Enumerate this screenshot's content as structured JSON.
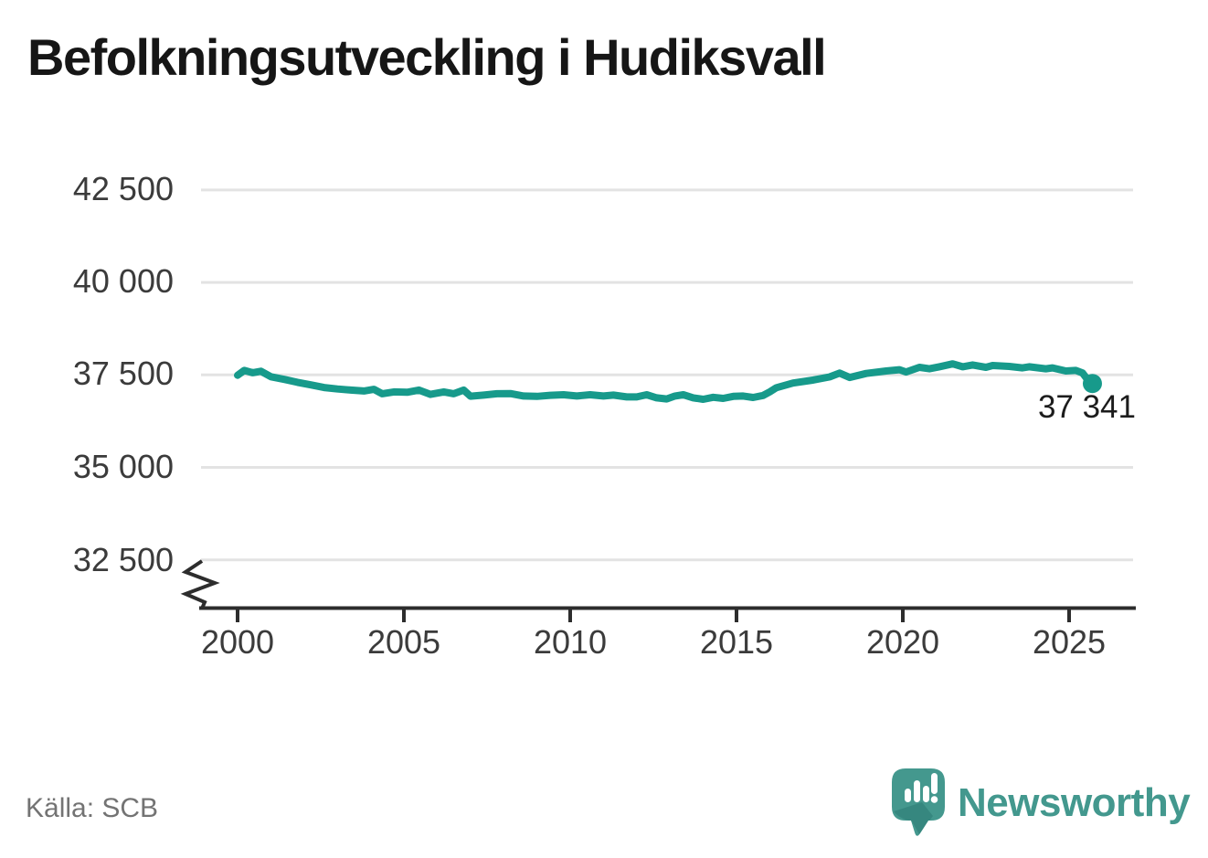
{
  "chart_data": {
    "type": "line",
    "title": "Befolkningsutveckling i Hudiksvall",
    "source": "Källa: SCB",
    "grid": "horizontal",
    "legend": "none",
    "axis_break": true,
    "xlim": [
      1999.9,
      2027.0
    ],
    "ylim_display": [
      32500,
      42500
    ],
    "ytick_labels": [
      "42 500",
      "40 000",
      "37 500",
      "35 000",
      "32 500"
    ],
    "ytick_values": [
      42500,
      40000,
      37500,
      35000,
      32500
    ],
    "xtick_labels": [
      "2000",
      "2005",
      "2010",
      "2015",
      "2020",
      "2025"
    ],
    "xtick_values": [
      2000,
      2005,
      2010,
      2015,
      2020,
      2025
    ],
    "line_color": "#179a8b",
    "grid_color": "#e3e3e3",
    "axis_color": "#2d2d2d",
    "end_label": {
      "text": "37 341",
      "value": 37341,
      "year": 2025.7
    },
    "series": [
      {
        "name": "Befolkning",
        "points": [
          [
            2000.0,
            37490
          ],
          [
            2000.2,
            37620
          ],
          [
            2000.45,
            37560
          ],
          [
            2000.7,
            37600
          ],
          [
            2001.0,
            37450
          ],
          [
            2001.4,
            37380
          ],
          [
            2001.8,
            37300
          ],
          [
            2002.2,
            37230
          ],
          [
            2002.6,
            37160
          ],
          [
            2003.0,
            37120
          ],
          [
            2003.4,
            37090
          ],
          [
            2003.8,
            37065
          ],
          [
            2004.1,
            37110
          ],
          [
            2004.35,
            36990
          ],
          [
            2004.7,
            37040
          ],
          [
            2005.1,
            37030
          ],
          [
            2005.45,
            37090
          ],
          [
            2005.8,
            36975
          ],
          [
            2006.2,
            37040
          ],
          [
            2006.5,
            36990
          ],
          [
            2006.8,
            37090
          ],
          [
            2007.0,
            36925
          ],
          [
            2007.4,
            36955
          ],
          [
            2007.8,
            36990
          ],
          [
            2008.2,
            36995
          ],
          [
            2008.6,
            36930
          ],
          [
            2009.0,
            36920
          ],
          [
            2009.4,
            36950
          ],
          [
            2009.8,
            36965
          ],
          [
            2010.2,
            36930
          ],
          [
            2010.6,
            36965
          ],
          [
            2011.0,
            36930
          ],
          [
            2011.3,
            36955
          ],
          [
            2011.7,
            36905
          ],
          [
            2012.0,
            36905
          ],
          [
            2012.3,
            36965
          ],
          [
            2012.6,
            36880
          ],
          [
            2012.9,
            36850
          ],
          [
            2013.15,
            36930
          ],
          [
            2013.4,
            36965
          ],
          [
            2013.7,
            36880
          ],
          [
            2014.0,
            36840
          ],
          [
            2014.3,
            36895
          ],
          [
            2014.6,
            36865
          ],
          [
            2014.9,
            36920
          ],
          [
            2015.2,
            36930
          ],
          [
            2015.5,
            36890
          ],
          [
            2015.8,
            36945
          ],
          [
            2016.0,
            37040
          ],
          [
            2016.2,
            37155
          ],
          [
            2016.7,
            37280
          ],
          [
            2017.3,
            37360
          ],
          [
            2017.8,
            37445
          ],
          [
            2018.1,
            37550
          ],
          [
            2018.4,
            37430
          ],
          [
            2018.9,
            37540
          ],
          [
            2019.5,
            37605
          ],
          [
            2019.9,
            37640
          ],
          [
            2020.1,
            37580
          ],
          [
            2020.5,
            37705
          ],
          [
            2020.8,
            37665
          ],
          [
            2021.1,
            37720
          ],
          [
            2021.5,
            37800
          ],
          [
            2021.8,
            37720
          ],
          [
            2022.1,
            37770
          ],
          [
            2022.5,
            37705
          ],
          [
            2022.7,
            37755
          ],
          [
            2023.2,
            37730
          ],
          [
            2023.6,
            37690
          ],
          [
            2023.8,
            37720
          ],
          [
            2024.3,
            37665
          ],
          [
            2024.5,
            37690
          ],
          [
            2024.9,
            37605
          ],
          [
            2025.2,
            37620
          ],
          [
            2025.4,
            37555
          ],
          [
            2025.55,
            37380
          ],
          [
            2025.7,
            37341
          ]
        ]
      }
    ]
  },
  "branding": {
    "logo_text": "Newsworthy",
    "logo_color": "#43988e",
    "logo_mark": "speech-bubble-bar-chart-icon",
    "logo_mark_color": "#44988e",
    "logo_mark_shadow_color": "#2b7a72"
  }
}
